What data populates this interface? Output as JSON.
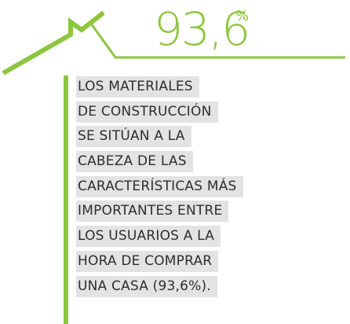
{
  "stat": {
    "number": "93,6",
    "unit": "%"
  },
  "text_lines": [
    "LOS MATERIALES",
    "DE CONSTRUCCIÓN",
    "SE SITÚAN A LA",
    "CABEZA DE LAS",
    "CARACTERÍSTICAS MÁS",
    "IMPORTANTES ENTRE",
    "LOS USUARIOS A LA",
    "HORA DE COMPRAR",
    "UNA CASA (93,6%)."
  ]
}
